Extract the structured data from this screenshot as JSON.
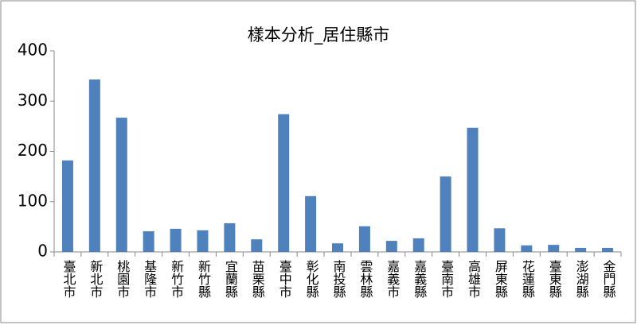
{
  "chart_data": {
    "type": "bar",
    "title": "樣本分析_居住縣市",
    "categories": [
      "臺北市",
      "新北市",
      "桃園市",
      "基隆市",
      "新竹市",
      "新竹縣",
      "宜蘭縣",
      "苗栗縣",
      "臺中市",
      "彰化縣",
      "南投縣",
      "雲林縣",
      "嘉義市",
      "嘉義縣",
      "臺南市",
      "高雄市",
      "屏東縣",
      "花蓮縣",
      "臺東縣",
      "澎湖縣",
      "金門縣"
    ],
    "values": [
      182,
      343,
      267,
      41,
      46,
      43,
      57,
      25,
      274,
      111,
      17,
      51,
      22,
      27,
      150,
      247,
      47,
      13,
      14,
      8,
      8
    ],
    "color": "#4f81bd",
    "ylim": [
      0,
      400
    ],
    "yticks": [
      0,
      100,
      200,
      300,
      400
    ],
    "grid": false
  }
}
